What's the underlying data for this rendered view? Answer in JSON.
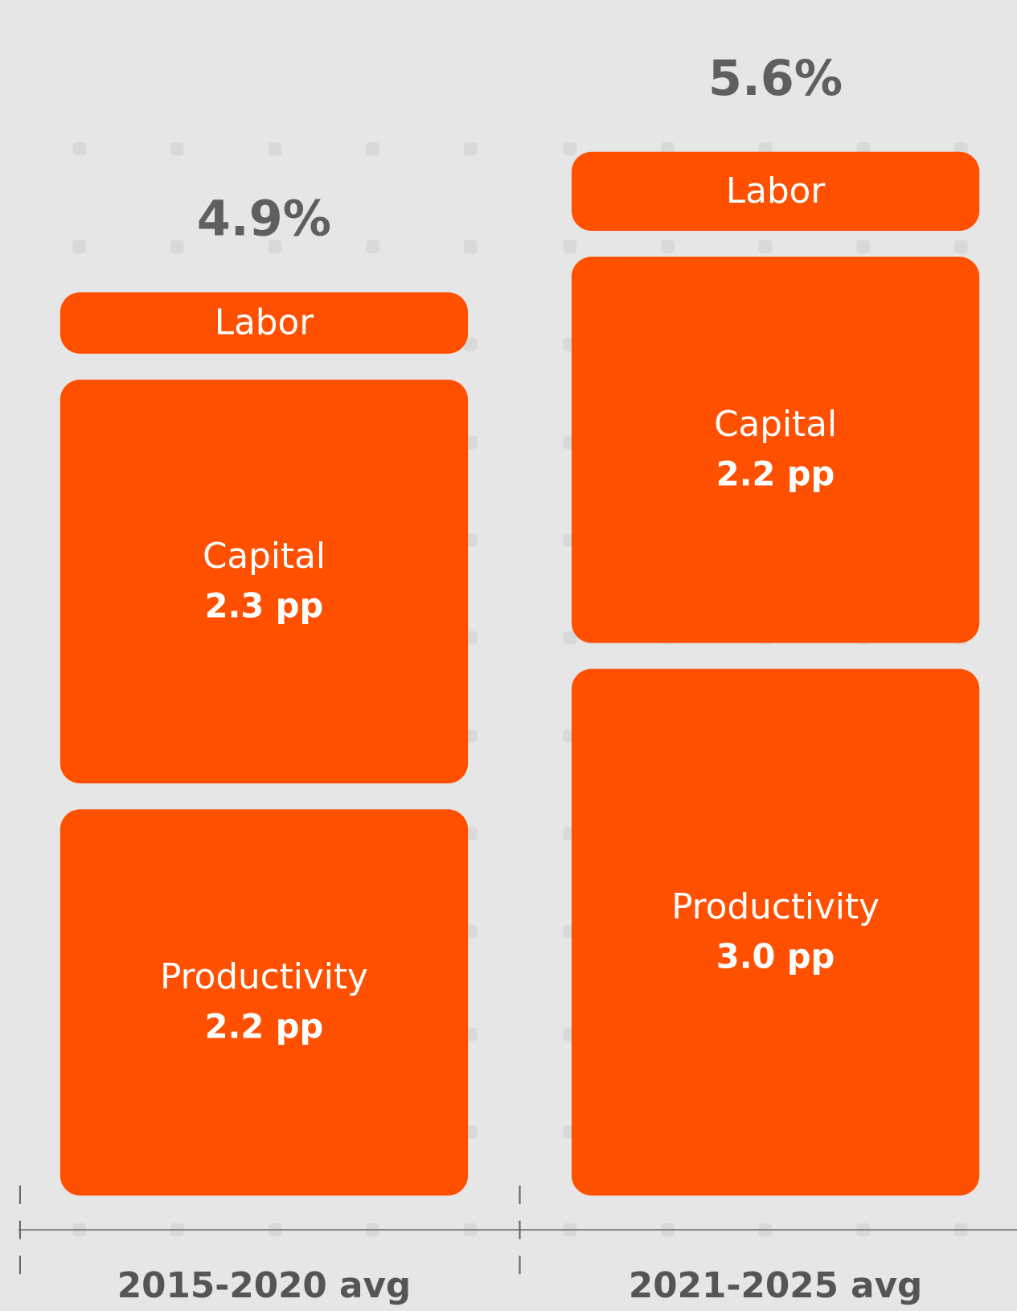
{
  "chart_data": {
    "type": "stacked-bar",
    "categories": [
      "2015-2020 avg",
      "2021-2025 avg"
    ],
    "series": [
      {
        "name": "Productivity",
        "color": "#ff5000",
        "values": [
          2.2,
          3.0
        ],
        "value_labels": [
          "2.2 pp",
          "3.0 pp"
        ]
      },
      {
        "name": "Capital",
        "color": "#ff5000",
        "values": [
          2.3,
          2.2
        ],
        "value_labels": [
          "2.3 pp",
          "2.2 pp"
        ]
      },
      {
        "name": "Labor",
        "color": "#ff5000",
        "values": [
          0.35,
          0.45
        ]
      }
    ],
    "totals": [
      4.9,
      5.6
    ],
    "total_labels": [
      "4.9%",
      "5.6%"
    ],
    "ylim": [
      0,
      6.5
    ]
  }
}
